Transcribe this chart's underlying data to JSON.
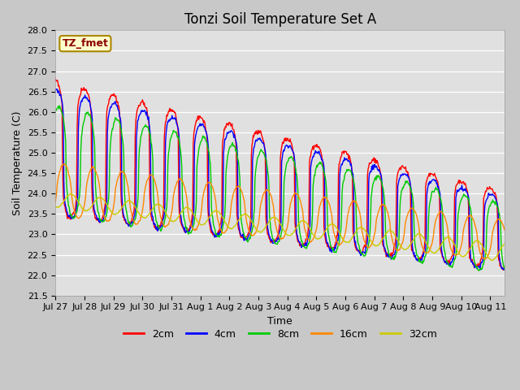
{
  "title": "Tonzi Soil Temperature Set A",
  "xlabel": "Time",
  "ylabel": "Soil Temperature (C)",
  "ylim": [
    21.5,
    28.0
  ],
  "yticks": [
    21.5,
    22.0,
    22.5,
    23.0,
    23.5,
    24.0,
    24.5,
    25.0,
    25.5,
    26.0,
    26.5,
    27.0,
    27.5,
    28.0
  ],
  "line_colors": {
    "2cm": "#FF0000",
    "4cm": "#0000FF",
    "8cm": "#00CC00",
    "16cm": "#FF8800",
    "32cm": "#CCCC00"
  },
  "xtick_labels": [
    "Jul 27",
    "Jul 28",
    "Jul 29",
    "Jul 30",
    "Jul 31",
    "Aug 1",
    "Aug 2",
    "Aug 3",
    "Aug 4",
    "Aug 5",
    "Aug 6",
    "Aug 7",
    "Aug 8",
    "Aug 9",
    "Aug 10",
    "Aug 11"
  ],
  "annotation_text": "TZ_fmet",
  "annotation_bg": "#FFFFCC",
  "annotation_border": "#AA8800",
  "fig_bg": "#C8C8C8",
  "plot_bg": "#E0E0E0",
  "title_fontsize": 12,
  "axis_label_fontsize": 9,
  "tick_fontsize": 8
}
